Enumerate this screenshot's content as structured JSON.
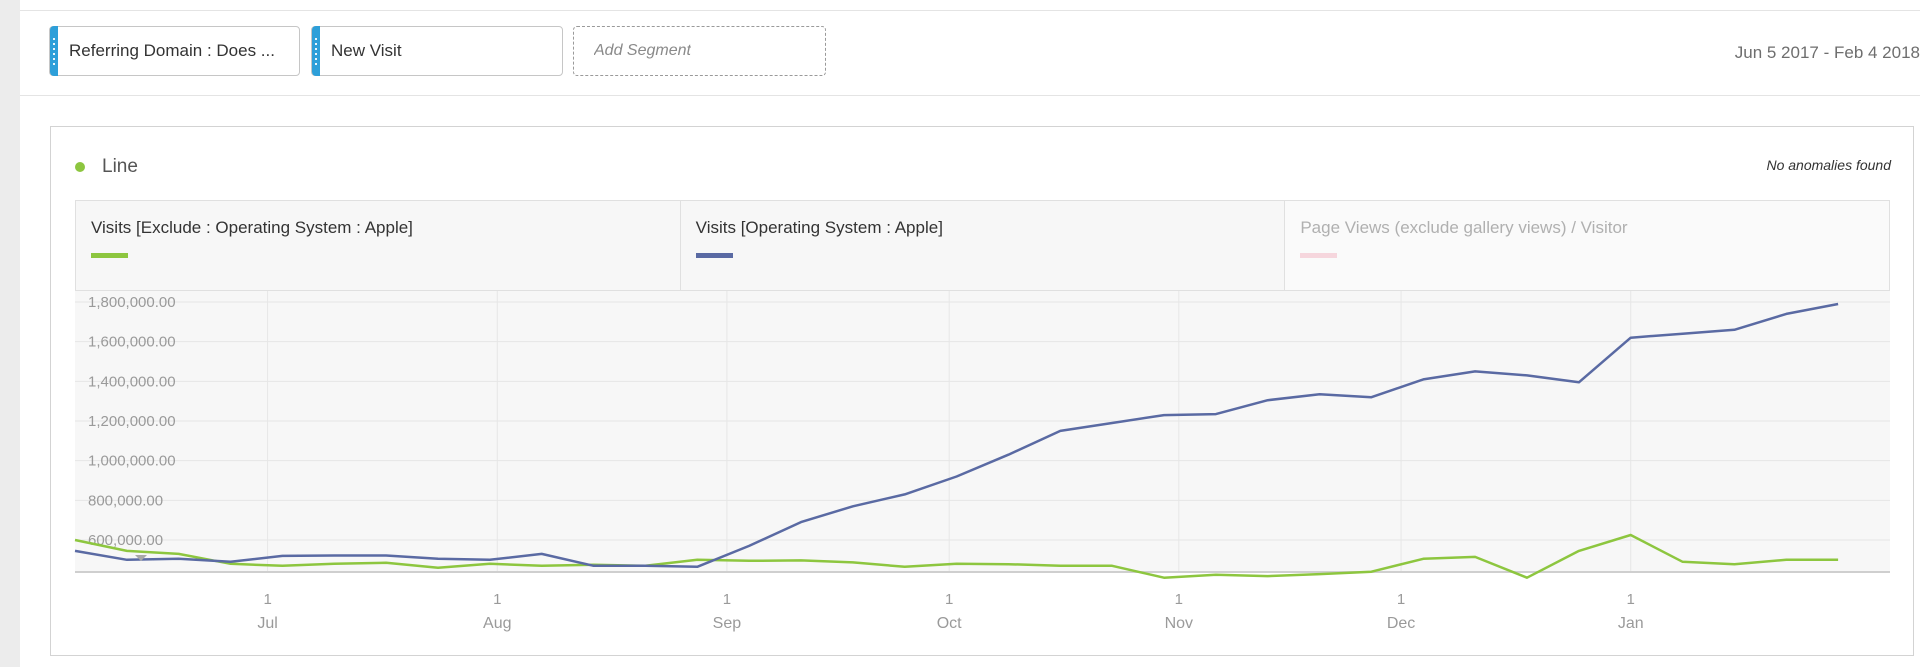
{
  "segments": [
    {
      "label": "Referring Domain : Does ..."
    },
    {
      "label": "New Visit"
    }
  ],
  "add_segment": {
    "label": "Add Segment"
  },
  "date_range": "Jun 5 2017 - Feb 4 2018",
  "viz": {
    "title": "Line",
    "dot_color": "#8dc63f",
    "anomaly_text": "No anomalies found"
  },
  "legend": [
    {
      "label": "Visits [Exclude : Operating System : Apple]",
      "color": "#8dc63f",
      "active": true
    },
    {
      "label": "Visits [Operating System : Apple]",
      "color": "#5a6aa3",
      "active": true
    },
    {
      "label": "Page Views (exclude gallery views) / Visitor",
      "color": "#f6d6dd",
      "active": false
    }
  ],
  "icons": {
    "collapse": "chevron-down-icon"
  },
  "chart_data": {
    "type": "line",
    "xlabel": "",
    "ylabel": "",
    "grid": true,
    "ylim": [
      500000,
      1800000
    ],
    "y_ticks": [
      "1,800,000.00",
      "1,600,000.00",
      "1,400,000.00",
      "1,200,000.00",
      "1,000,000.00",
      "800,000.00",
      "600,000.00"
    ],
    "y_tick_values": [
      1800000,
      1600000,
      1400000,
      1200000,
      1000000,
      800000,
      600000
    ],
    "x_range": [
      "2017-06-05",
      "2018-02-05"
    ],
    "x_ticks": [
      {
        "date": "2017-07-01",
        "day": "1",
        "month": "Jul"
      },
      {
        "date": "2017-08-01",
        "day": "1",
        "month": "Aug"
      },
      {
        "date": "2017-09-01",
        "day": "1",
        "month": "Sep"
      },
      {
        "date": "2017-10-01",
        "day": "1",
        "month": "Oct"
      },
      {
        "date": "2017-11-01",
        "day": "1",
        "month": "Nov"
      },
      {
        "date": "2017-12-01",
        "day": "1",
        "month": "Dec"
      },
      {
        "date": "2018-01-01",
        "day": "1",
        "month": "Jan"
      }
    ],
    "x": [
      "2017-06-05",
      "2017-06-12",
      "2017-06-19",
      "2017-06-26",
      "2017-07-03",
      "2017-07-10",
      "2017-07-17",
      "2017-07-24",
      "2017-07-31",
      "2017-08-07",
      "2017-08-14",
      "2017-08-21",
      "2017-08-28",
      "2017-09-04",
      "2017-09-11",
      "2017-09-18",
      "2017-09-25",
      "2017-10-02",
      "2017-10-09",
      "2017-10-16",
      "2017-10-23",
      "2017-10-30",
      "2017-11-06",
      "2017-11-13",
      "2017-11-20",
      "2017-11-27",
      "2017-12-04",
      "2017-12-11",
      "2017-12-18",
      "2017-12-25",
      "2018-01-01",
      "2018-01-08",
      "2018-01-15",
      "2018-01-22",
      "2018-01-29"
    ],
    "series": [
      {
        "name": "Visits [Exclude : Operating System : Apple]",
        "color": "#8dc63f",
        "values": [
          600000,
          545000,
          530000,
          480000,
          470000,
          480000,
          485000,
          460000,
          480000,
          470000,
          475000,
          470000,
          500000,
          495000,
          497000,
          487000,
          465000,
          480000,
          478000,
          470000,
          470000,
          410000,
          425000,
          418000,
          428000,
          440000,
          505000,
          515000,
          410000,
          545000,
          625000,
          490000,
          478000,
          500000,
          500000
        ]
      },
      {
        "name": "Visits [Operating System : Apple]",
        "color": "#5a6aa3",
        "values": [
          545000,
          500000,
          505000,
          490000,
          520000,
          522000,
          522000,
          505000,
          500000,
          530000,
          470000,
          470000,
          465000,
          570000,
          690000,
          770000,
          830000,
          920000,
          1030000,
          1150000,
          1190000,
          1230000,
          1235000,
          1305000,
          1335000,
          1320000,
          1410000,
          1450000,
          1430000,
          1395000,
          1620000,
          1640000,
          1660000,
          1740000,
          1790000
        ]
      }
    ]
  }
}
